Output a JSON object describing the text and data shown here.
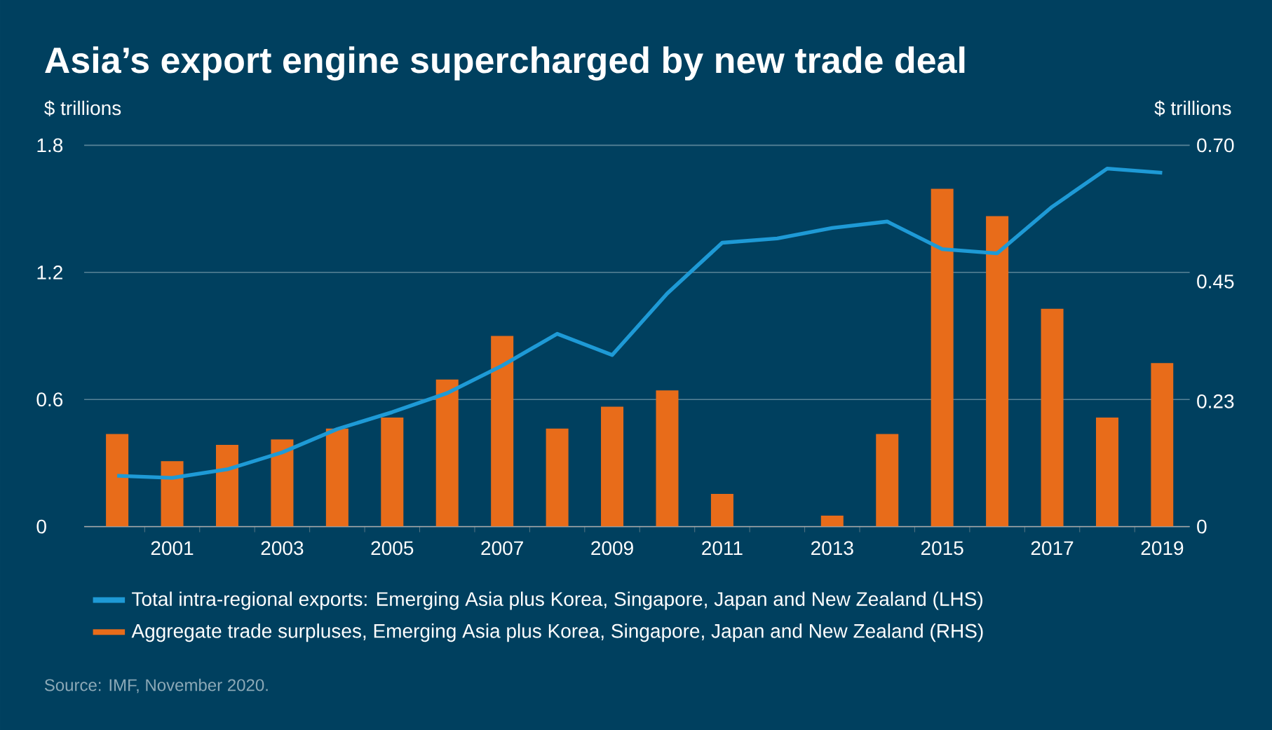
{
  "chart_data": {
    "type": "bar",
    "title": "Asia’s export engine supercharged by new trade deal",
    "ylabel": "$ trillions",
    "y2label": "$ trillions",
    "categories": [
      null,
      "2001",
      null,
      "2003",
      null,
      "2005",
      null,
      "2007",
      null,
      "2009",
      null,
      "2011",
      null,
      "2013",
      null,
      "2015",
      null,
      "2017",
      null,
      "2019"
    ],
    "series": [
      {
        "name": "Total intra-regional exports: Emerging Asia plus Korea, Singapore, Japan and New Zealand (LHS)",
        "type": "line",
        "axis": "y",
        "color": "#1e9ad6",
        "values": [
          0.24,
          0.23,
          0.27,
          0.35,
          0.46,
          0.54,
          0.63,
          0.76,
          0.91,
          0.81,
          1.1,
          1.34,
          1.36,
          1.41,
          1.44,
          1.31,
          1.29,
          1.51,
          1.69,
          1.67
        ]
      },
      {
        "name": "Aggregate trade surpluses, Emerging Asia plus Korea, Singapore, Japan and New Zealand (RHS)",
        "axis": "y2",
        "color": "#e86c1a",
        "values": [
          0.17,
          0.12,
          0.15,
          0.16,
          0.18,
          0.2,
          0.27,
          0.35,
          0.18,
          0.22,
          0.25,
          0.06,
          0.0,
          0.02,
          0.17,
          0.62,
          0.57,
          0.4,
          0.2,
          0.3
        ]
      }
    ],
    "ylim": [
      0,
      1.8
    ],
    "yticks": [
      0,
      0.6,
      1.2,
      1.8
    ],
    "y2lim": [
      0,
      0.7
    ],
    "y2ticks": [
      0,
      0.23,
      0.45,
      {
        "value": 0.7,
        "label": "0.70"
      }
    ],
    "grid": "y",
    "legend": "bottom",
    "annotations": [
      "Source: IMF, November 2020."
    ]
  }
}
